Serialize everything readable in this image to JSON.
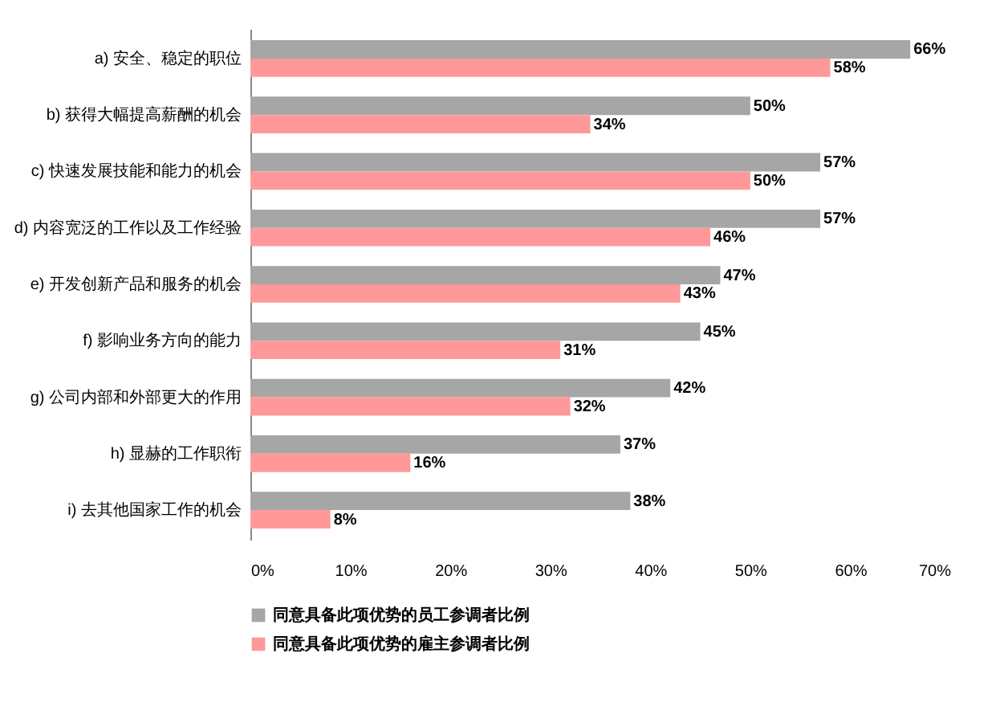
{
  "chart_data": {
    "type": "bar",
    "orientation": "horizontal",
    "categories": [
      "a) 安全、稳定的职位",
      "b) 获得大幅提高薪酬的机会",
      "c) 快速发展技能和能力的机会",
      "d) 内容宽泛的工作以及工作经验",
      "e) 开发创新产品和服务的机会",
      "f) 影响业务方向的能力",
      "g) 公司内部和外部更大的作用",
      "h) 显赫的工作职衔",
      "i) 去其他国家工作的机会"
    ],
    "series": [
      {
        "name": "同意具备此项优势的员工参调者比例",
        "color": "#a6a6a6",
        "values": [
          66,
          50,
          57,
          57,
          47,
          45,
          42,
          37,
          38
        ],
        "value_labels": [
          "66%",
          "50%",
          "57%",
          "57%",
          "47%",
          "45%",
          "42%",
          "37%",
          "38%"
        ]
      },
      {
        "name": "同意具备此项优势的雇主参调者比例",
        "color": "#ff9999",
        "values": [
          58,
          34,
          50,
          46,
          43,
          31,
          32,
          16,
          8
        ],
        "value_labels": [
          "58%",
          "34%",
          "50%",
          "46%",
          "43%",
          "31%",
          "32%",
          "16%",
          "8%"
        ]
      }
    ],
    "xlim": [
      0,
      70
    ],
    "xticks": [
      {
        "value": 0,
        "label": "0%"
      },
      {
        "value": 10,
        "label": "10%"
      },
      {
        "value": 20,
        "label": "20%"
      },
      {
        "value": 30,
        "label": "30%"
      },
      {
        "value": 40,
        "label": "40%"
      },
      {
        "value": 50,
        "label": "50%"
      },
      {
        "value": 60,
        "label": "60%"
      },
      {
        "value": 70,
        "label": "70%"
      }
    ],
    "legend": "bottom"
  }
}
